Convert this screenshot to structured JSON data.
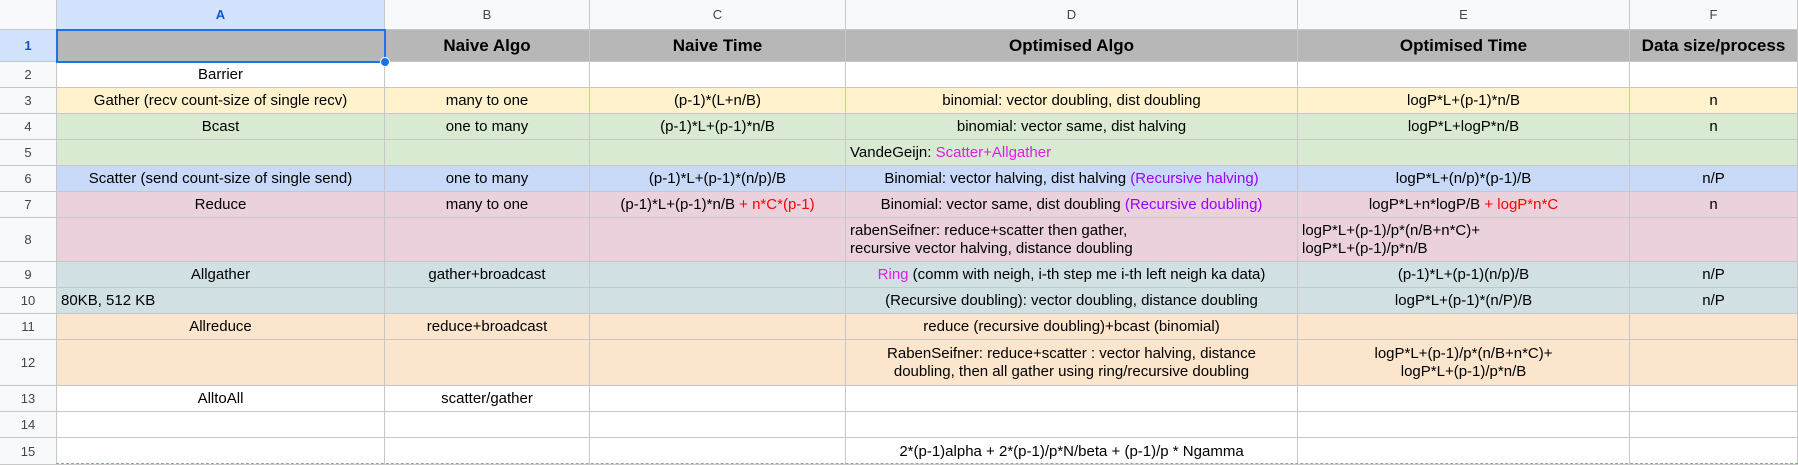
{
  "columns": [
    "A",
    "B",
    "C",
    "D",
    "E",
    "F"
  ],
  "rows": [
    "1",
    "2",
    "3",
    "4",
    "5",
    "6",
    "7",
    "8",
    "9",
    "10",
    "11",
    "12",
    "13",
    "14",
    "15"
  ],
  "colors": {
    "header": "#b7b7b7",
    "white": "#ffffff",
    "yellow": "#fff2cc",
    "green": "#d9ead3",
    "blue": "#c9daf8",
    "pink": "#ead1dc",
    "teal": "#d0e0e3",
    "orange": "#fce5cd",
    "accent": "#1a73e8"
  },
  "cells": {
    "r1": {
      "b": "Naive Algo",
      "c": "Naive Time",
      "d": "Optimised Algo",
      "e": "Optimised Time",
      "f": "Data size/process"
    },
    "r2": {
      "a": "Barrier"
    },
    "r3": {
      "a": "Gather (recv count-size of single recv)",
      "b": "many to one",
      "c": "(p-1)*(L+n/B)",
      "d": "binomial: vector doubling, dist doubling",
      "e": "logP*L+(p-1)*n/B",
      "f": "n"
    },
    "r4": {
      "a": "Bcast",
      "b": "one to many",
      "c": "(p-1)*L+(p-1)*n/B",
      "d": "binomial: vector same, dist halving",
      "e": "logP*L+logP*n/B",
      "f": "n"
    },
    "r5": {
      "d_prefix": "VandeGeijn: ",
      "d_highlight": "Scatter+Allgather"
    },
    "r6": {
      "a": "Scatter (send count-size of single send)",
      "b": "one to many",
      "c": "(p-1)*L+(p-1)*(n/p)/B",
      "d_prefix": "Binomial: vector halving, dist halving ",
      "d_highlight": "(Recursive halving)",
      "e": "logP*L+(n/p)*(p-1)/B",
      "f": "n/P"
    },
    "r7": {
      "a": "Reduce",
      "b": "many to one",
      "c_prefix": "(p-1)*L+(p-1)*n/B",
      "c_highlight": " + n*C*(p-1)",
      "d_prefix": "Binomial: vector same, dist doubling ",
      "d_highlight": "(Recursive doubling)",
      "e_prefix": "logP*L+n*logP/B",
      "e_highlight": " + logP*n*C",
      "f": "n"
    },
    "r8": {
      "d_line1": "rabenSeifner: reduce+scatter then gather,",
      "d_line2": "recursive vector halving, distance doubling",
      "e_line1": "logP*L+(p-1)/p*(n/B+n*C)+",
      "e_line2": "logP*L+(p-1)/p*n/B"
    },
    "r9": {
      "a": "Allgather",
      "b": "gather+broadcast",
      "d_highlight": "Ring",
      "d_suffix": " (comm with neigh, i-th step me i-th left neigh ka data)",
      "e": "(p-1)*L+(p-1)(n/p)/B",
      "f": "n/P"
    },
    "r10": {
      "a": "80KB, 512 KB",
      "d": "(Recursive doubling): vector doubling, distance doubling",
      "e": "logP*L+(p-1)*(n/P)/B",
      "f": "n/P"
    },
    "r11": {
      "a": "Allreduce",
      "b": "reduce+broadcast",
      "d": "reduce (recursive doubling)+bcast (binomial)"
    },
    "r12": {
      "d_line1": "RabenSeifner: reduce+scatter : vector halving, distance",
      "d_line2": "doubling, then all gather using ring/recursive doubling",
      "e_line1": "logP*L+(p-1)/p*(n/B+n*C)+",
      "e_line2": "logP*L+(p-1)/p*n/B"
    },
    "r13": {
      "a": "AlltoAll",
      "b": "scatter/gather"
    },
    "r15": {
      "d": "2*(p-1)alpha + 2*(p-1)/p*N/beta + (p-1)/p * Ngamma"
    }
  }
}
